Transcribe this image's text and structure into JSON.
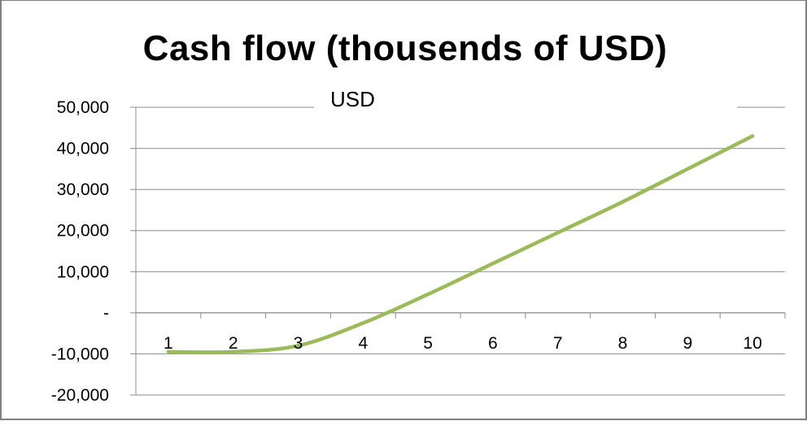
{
  "chart_data": {
    "type": "line",
    "title": "Cash flow (thousends of USD)",
    "units_label": "USD",
    "x": [
      "1",
      "2",
      "3",
      "4",
      "5",
      "6",
      "7",
      "8",
      "9",
      "10"
    ],
    "series": [
      {
        "values": [
          -9500,
          -9500,
          -8000,
          -2500,
          4500,
          12000,
          19500,
          27000,
          35000,
          43000
        ]
      }
    ],
    "ylim": [
      -20000,
      50000
    ],
    "yticks": [
      {
        "value": 50000,
        "label": "50,000"
      },
      {
        "value": 40000,
        "label": "40,000"
      },
      {
        "value": 30000,
        "label": "30,000"
      },
      {
        "value": 20000,
        "label": "20,000"
      },
      {
        "value": 10000,
        "label": "10,000"
      },
      {
        "value": 0,
        "label": "-"
      },
      {
        "value": -10000,
        "label": "-10,000"
      },
      {
        "value": -20000,
        "label": "-20,000"
      }
    ],
    "grid": true,
    "legend": "none",
    "line_color": "#9bbb59"
  }
}
